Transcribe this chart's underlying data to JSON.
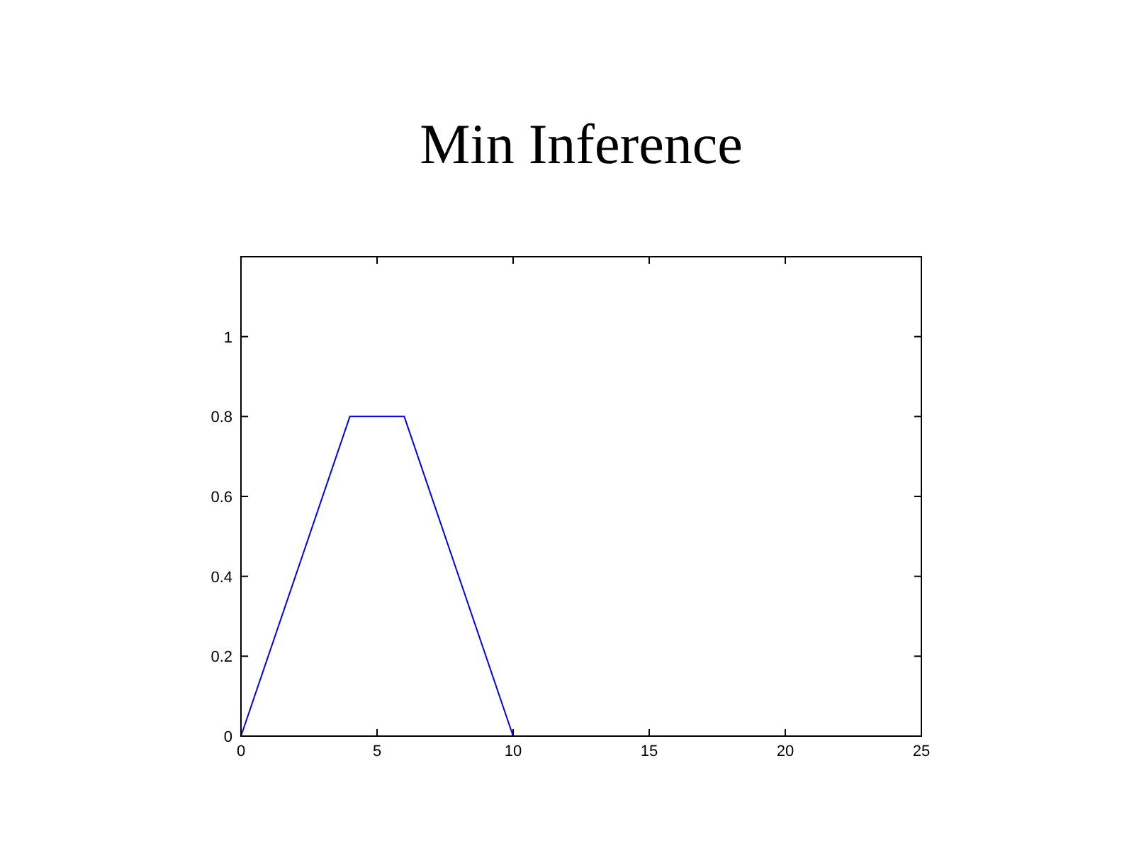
{
  "chart_data": {
    "type": "line",
    "title": "Min Inference",
    "x": [
      0,
      4,
      6,
      10
    ],
    "series": [
      {
        "color": "#0000ff",
        "values": [
          0,
          0.8,
          0.8,
          0
        ]
      }
    ],
    "xlim": [
      0,
      25
    ],
    "xticks": [
      0,
      5,
      10,
      15,
      20,
      25
    ],
    "ylim": [
      0,
      1.2
    ],
    "yticks": [
      0,
      0.2,
      0.4,
      0.6,
      0.8,
      1
    ],
    "grid": false,
    "marker": "none",
    "line_style": "solid"
  }
}
